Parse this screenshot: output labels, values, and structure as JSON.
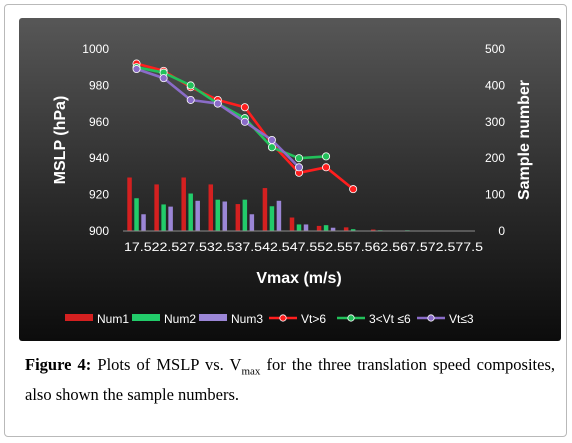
{
  "chart_data": {
    "type": "bar+line",
    "title": "",
    "xlabel": "Vmax (m/s)",
    "ylabel_left": "MSLP (hPa)",
    "ylabel_right": "Sample number",
    "ylim_left": [
      900,
      1000
    ],
    "ylim_right": [
      0,
      500
    ],
    "yticks_left": [
      900,
      920,
      940,
      960,
      980,
      1000
    ],
    "yticks_right": [
      0,
      100,
      200,
      300,
      400,
      500
    ],
    "categories": [
      "17.5",
      "22.5",
      "27.5",
      "32.5",
      "37.5",
      "42.5",
      "47.5",
      "52.5",
      "57.5",
      "62.5",
      "67.5",
      "72.5",
      "77.5"
    ],
    "legend_position": "bottom",
    "background": "dark gradient",
    "bar_series": [
      {
        "name": "Num1",
        "color": "#d42020",
        "values": [
          147,
          128,
          147,
          128,
          74,
          118,
          37,
          14,
          10,
          4,
          0,
          0,
          0
        ]
      },
      {
        "name": "Num2",
        "color": "#22cc6a",
        "values": [
          90,
          73,
          103,
          86,
          86,
          68,
          18,
          16,
          5,
          2,
          2,
          0,
          0
        ]
      },
      {
        "name": "Num3",
        "color": "#9b86d6",
        "values": [
          46,
          67,
          83,
          81,
          46,
          83,
          18,
          9,
          0,
          0,
          0,
          0,
          0
        ]
      }
    ],
    "line_series": [
      {
        "name": "Vt>6",
        "color": "#ff1e1e",
        "values": [
          992,
          988,
          979,
          972,
          968,
          948,
          932,
          935,
          923,
          null,
          null,
          null,
          null
        ]
      },
      {
        "name": "3<Vt ≤6",
        "color": "#22c05a",
        "values": [
          990,
          987,
          980,
          970,
          962,
          946,
          940,
          941,
          null,
          null,
          null,
          null,
          null
        ]
      },
      {
        "name": "Vt≤3",
        "color": "#8a6cc8",
        "values": [
          989,
          984,
          972,
          970,
          960,
          950,
          935,
          null,
          null,
          null,
          null,
          null,
          null
        ]
      }
    ],
    "x_tick_text": "17.522.527.532.537.542.547.552.557.562.567.572.577.5"
  },
  "caption": {
    "label": "Figure 4:",
    "text_a": " Plots of MSLP vs. V",
    "sub": "max",
    "text_b": " for the three translation speed composites, also shown the sample numbers."
  }
}
